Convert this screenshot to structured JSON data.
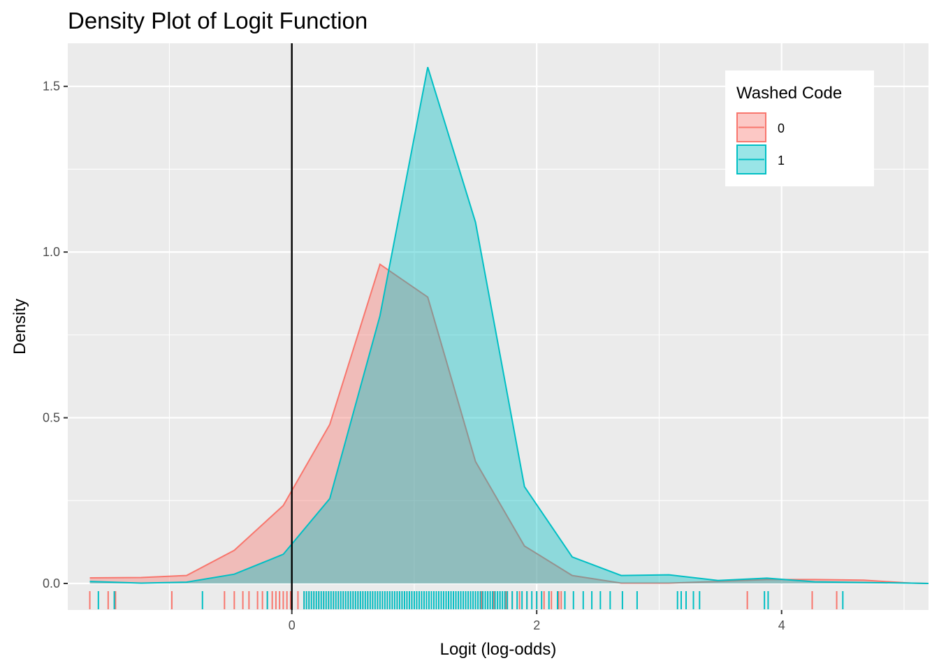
{
  "chart_data": {
    "type": "area",
    "title": "Density Plot of Logit Function",
    "xlabel": "Logit (log-odds)",
    "ylabel": "Density",
    "xlim": [
      -1.83,
      5.2
    ],
    "ylim": [
      -0.08,
      1.63
    ],
    "x_ticks": [
      0,
      2,
      4
    ],
    "x_tick_labels": [
      "0",
      "2",
      "4"
    ],
    "y_ticks": [
      0.0,
      0.5,
      1.0,
      1.5
    ],
    "y_tick_labels": [
      "0.0",
      "0.5",
      "1.0",
      "1.5"
    ],
    "grid": true,
    "reference_line_x": 0,
    "legend": {
      "title": "Washed Code",
      "position": "top-right"
    },
    "series": [
      {
        "name": "0",
        "color": "#F8766D",
        "x": [
          -1.65,
          -1.23,
          -0.86,
          -0.47,
          -0.07,
          0.31,
          0.72,
          1.11,
          1.5,
          1.9,
          2.29,
          2.69,
          3.08,
          3.48,
          3.88,
          4.27,
          4.67,
          5.06,
          5.2
        ],
        "y": [
          0.017,
          0.018,
          0.024,
          0.1,
          0.235,
          0.48,
          0.963,
          0.864,
          0.368,
          0.113,
          0.024,
          0.001,
          0.001,
          0.006,
          0.012,
          0.012,
          0.01,
          0.001,
          0.0
        ],
        "rug": [
          -1.65,
          -1.5,
          -1.44,
          -0.98,
          -0.55,
          -0.47,
          -0.4,
          -0.35,
          -0.28,
          -0.24,
          -0.2,
          -0.16,
          -0.13,
          -0.1,
          -0.07,
          -0.04,
          -0.01,
          0.05,
          0.1,
          0.14,
          0.18,
          0.22,
          0.26,
          0.3,
          0.34,
          0.38,
          0.42,
          0.46,
          0.5,
          0.54,
          0.58,
          0.62,
          0.66,
          0.7,
          0.74,
          0.78,
          0.82,
          0.86,
          0.9,
          0.94,
          0.98,
          1.02,
          1.06,
          1.1,
          1.14,
          1.18,
          1.22,
          1.26,
          1.3,
          1.34,
          1.38,
          1.42,
          1.46,
          1.5,
          1.55,
          1.6,
          1.65,
          1.7,
          1.75,
          1.8,
          1.86,
          1.92,
          2.0,
          2.06,
          2.12,
          2.18,
          2.2,
          3.72,
          4.25,
          4.45
        ]
      },
      {
        "name": "1",
        "color": "#00BFC4",
        "x": [
          -1.65,
          -1.23,
          -0.86,
          -0.47,
          -0.07,
          0.31,
          0.72,
          1.11,
          1.5,
          1.9,
          2.29,
          2.69,
          3.08,
          3.48,
          3.88,
          4.27,
          4.67,
          5.06,
          5.2
        ],
        "y": [
          0.006,
          0.001,
          0.004,
          0.028,
          0.088,
          0.256,
          0.808,
          1.558,
          1.09,
          0.292,
          0.08,
          0.024,
          0.026,
          0.009,
          0.016,
          0.005,
          0.003,
          0.001,
          0.0
        ],
        "rug": [
          -1.58,
          -1.45,
          -0.73,
          -0.2,
          0.1,
          0.12,
          0.14,
          0.16,
          0.18,
          0.2,
          0.22,
          0.24,
          0.26,
          0.28,
          0.3,
          0.32,
          0.34,
          0.36,
          0.38,
          0.4,
          0.42,
          0.44,
          0.46,
          0.48,
          0.5,
          0.52,
          0.54,
          0.56,
          0.58,
          0.6,
          0.62,
          0.64,
          0.66,
          0.68,
          0.7,
          0.72,
          0.74,
          0.76,
          0.78,
          0.8,
          0.82,
          0.84,
          0.86,
          0.88,
          0.9,
          0.92,
          0.94,
          0.96,
          0.98,
          1.0,
          1.02,
          1.04,
          1.06,
          1.08,
          1.1,
          1.12,
          1.14,
          1.16,
          1.18,
          1.2,
          1.22,
          1.24,
          1.26,
          1.28,
          1.3,
          1.32,
          1.34,
          1.36,
          1.38,
          1.4,
          1.42,
          1.44,
          1.46,
          1.48,
          1.5,
          1.52,
          1.54,
          1.56,
          1.58,
          1.6,
          1.62,
          1.64,
          1.66,
          1.68,
          1.7,
          1.72,
          1.74,
          1.76,
          1.8,
          1.84,
          1.88,
          1.92,
          1.96,
          2.0,
          2.04,
          2.1,
          2.17,
          2.23,
          2.3,
          2.38,
          2.45,
          2.52,
          2.6,
          2.7,
          2.82,
          3.15,
          3.18,
          3.22,
          3.28,
          3.33,
          3.86,
          3.89,
          4.5
        ]
      }
    ]
  }
}
